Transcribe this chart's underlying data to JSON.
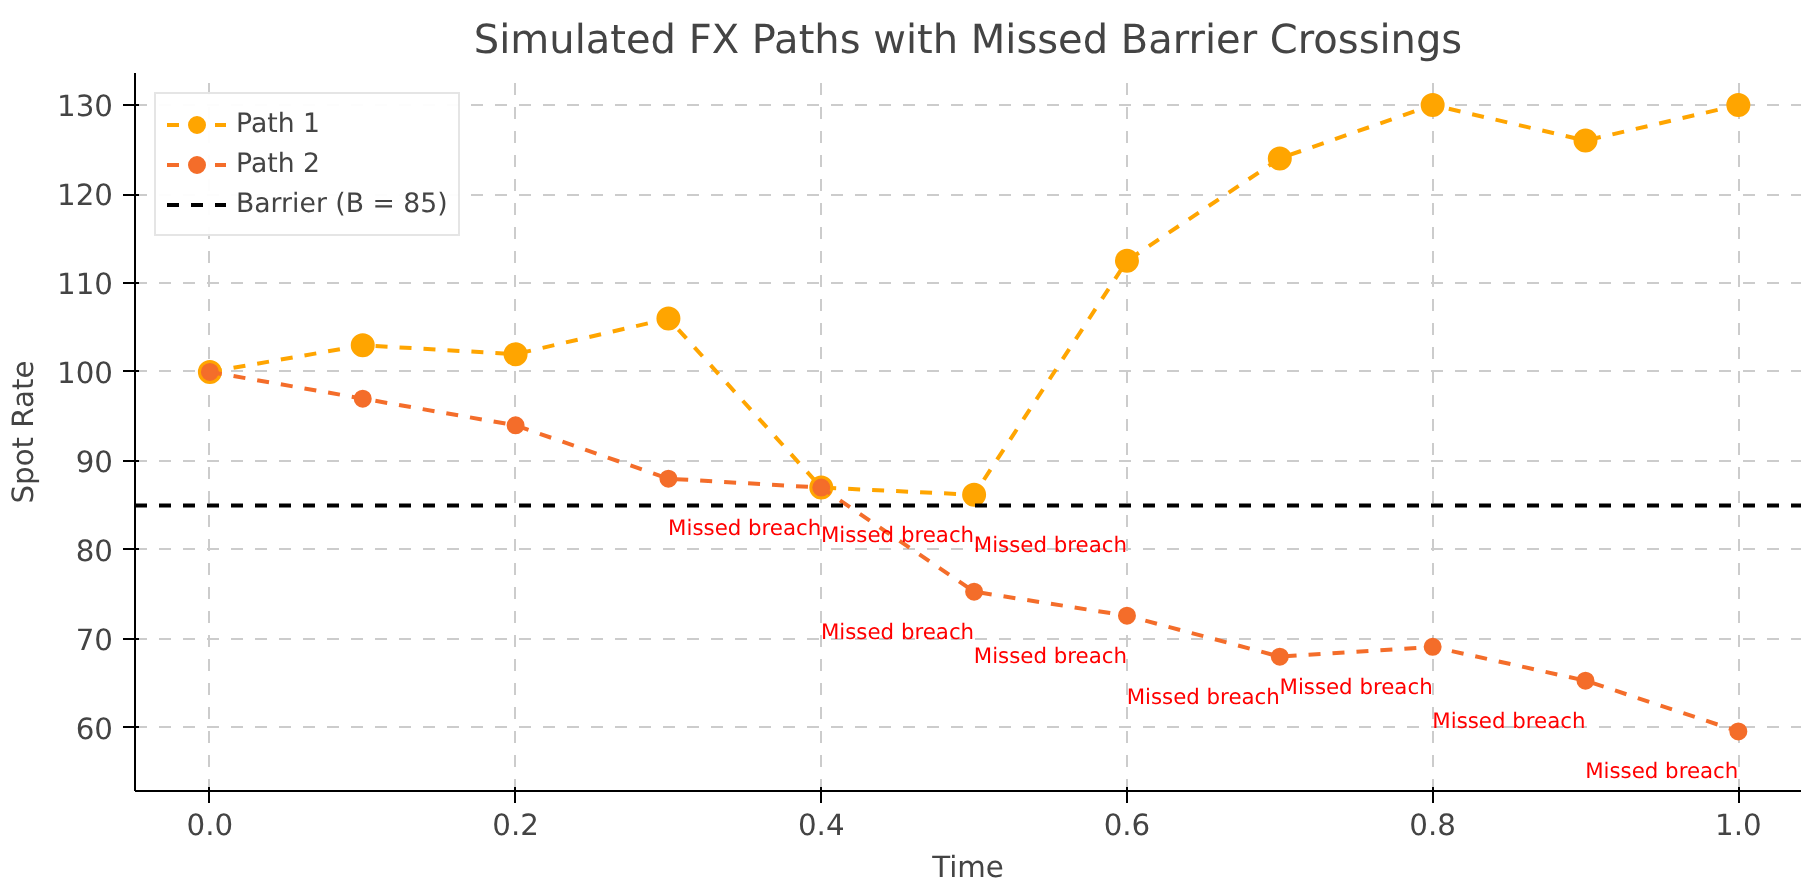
{
  "chart_data": {
    "type": "line",
    "title": "Simulated FX Paths with Missed Barrier Crossings",
    "xlabel": "Time",
    "ylabel": "Spot Rate",
    "x": [
      0.0,
      0.1,
      0.2,
      0.3,
      0.4,
      0.5,
      0.6,
      0.7,
      0.8,
      0.9,
      1.0
    ],
    "series": [
      {
        "name": "Path 1",
        "color": "#ffa500",
        "values": [
          100,
          103,
          102,
          106,
          87,
          86.2,
          112.5,
          124,
          130,
          126,
          130
        ]
      },
      {
        "name": "Path 2",
        "color": "#f46d2a",
        "values": [
          100,
          97,
          94,
          88,
          87,
          75.3,
          72.6,
          68,
          69.1,
          65.3,
          59.6
        ]
      }
    ],
    "ref_lines": [
      {
        "axis": "y",
        "value": 85,
        "label": "Barrier (B = 85)",
        "color": "#000000",
        "line_style": "dashed"
      }
    ],
    "annotations": [
      {
        "text": "Missed breach",
        "x": 0.4,
        "y": 87
      },
      {
        "text": "Missed breach",
        "x": 0.5,
        "y": 86.2
      },
      {
        "text": "Missed breach",
        "x": 0.6,
        "y": 85
      },
      {
        "text": "Missed breach",
        "x": 0.5,
        "y": 75.3
      },
      {
        "text": "Missed breach",
        "x": 0.6,
        "y": 72.6
      },
      {
        "text": "Missed breach",
        "x": 0.7,
        "y": 68
      },
      {
        "text": "Missed breach",
        "x": 0.8,
        "y": 69.1
      },
      {
        "text": "Missed breach",
        "x": 0.9,
        "y": 65.3
      },
      {
        "text": "Missed breach",
        "x": 1.0,
        "y": 59.6
      }
    ],
    "xlim": [
      -0.049,
      1.041
    ],
    "ylim": [
      52.9,
      133.6
    ],
    "xticks": [
      {
        "value": 0,
        "label": "0.0"
      },
      0.2,
      0.4,
      0.6,
      0.8,
      {
        "value": 1,
        "label": "1.0"
      }
    ],
    "yticks": [
      60,
      70,
      80,
      90,
      100,
      110,
      120,
      130
    ],
    "grid": true,
    "legend": "top left",
    "marker": "circle",
    "line_style": "dashed"
  }
}
